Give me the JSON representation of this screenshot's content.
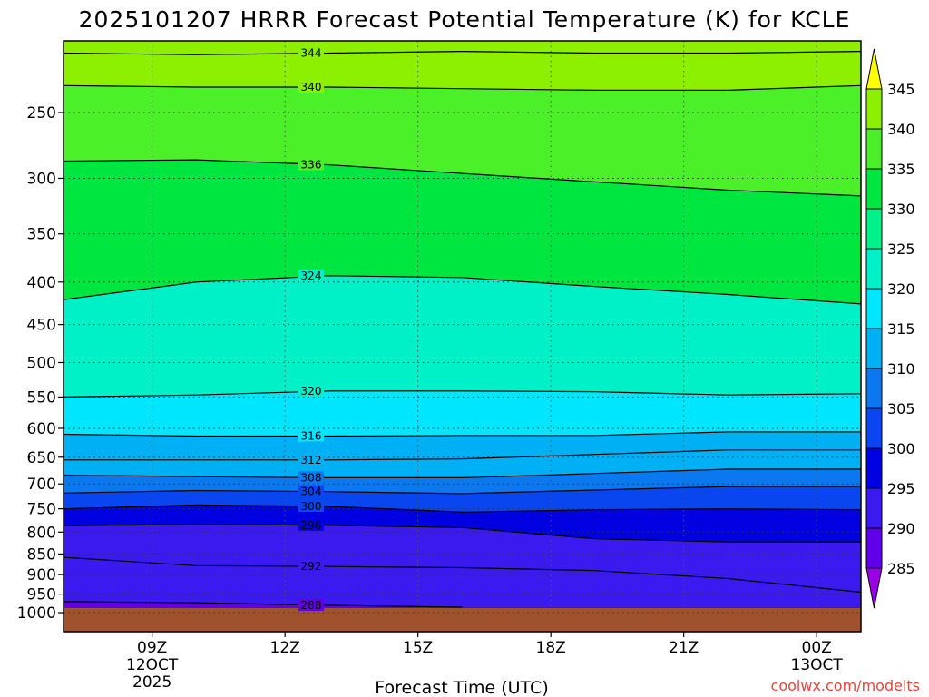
{
  "chart_data": {
    "type": "heatmap",
    "title": "2025101207 HRRR Forecast Potential Temperature (K) for KCLE",
    "xlabel": "Forecast Time (UTC)",
    "ylabel": "",
    "credit": "coolwx.com/modelts",
    "x_ticks": [
      {
        "hour": 9,
        "label": "09Z",
        "sub1": "12OCT",
        "sub2": "2025"
      },
      {
        "hour": 12,
        "label": "12Z",
        "sub1": "",
        "sub2": ""
      },
      {
        "hour": 15,
        "label": "15Z",
        "sub1": "",
        "sub2": ""
      },
      {
        "hour": 18,
        "label": "18Z",
        "sub1": "",
        "sub2": ""
      },
      {
        "hour": 21,
        "label": "21Z",
        "sub1": "",
        "sub2": ""
      },
      {
        "hour": 24,
        "label": "00Z",
        "sub1": "13OCT",
        "sub2": ""
      }
    ],
    "xlim": [
      7.0,
      25.0
    ],
    "y_ticks": [
      250,
      300,
      350,
      400,
      450,
      500,
      550,
      600,
      650,
      700,
      750,
      800,
      850,
      900,
      950,
      1000
    ],
    "ylim": [
      200,
      1025
    ],
    "y_scale": "log-pressure",
    "ground_pressure": 1000,
    "colorbar": {
      "levels": [
        285,
        290,
        295,
        300,
        305,
        310,
        315,
        320,
        325,
        330,
        335,
        340,
        345
      ],
      "tick_labels": [
        "285",
        "290",
        "295",
        "300",
        "305",
        "310",
        "315",
        "320",
        "325",
        "330",
        "335",
        "340",
        "345"
      ],
      "colors": [
        "#9a00e6",
        "#6000e8",
        "#3a1aee",
        "#0000e0",
        "#0a46f0",
        "#0a78f0",
        "#00b0f5",
        "#00e6ff",
        "#00f0c8",
        "#00f08a",
        "#00e640",
        "#4cf028",
        "#8cf000",
        "#c8f000",
        "#ffff00"
      ],
      "extend": "both"
    },
    "grid": true,
    "isentropes": [
      {
        "theta": 344,
        "p": [
          212,
          213,
          212,
          211,
          212,
          212,
          211
        ],
        "labelled": true
      },
      {
        "theta": 340,
        "p": [
          232,
          233,
          233,
          234,
          235,
          235,
          232
        ],
        "labelled": true
      },
      {
        "theta": 336,
        "p": [
          286,
          285,
          289,
          296,
          303,
          310,
          315
        ],
        "labelled": true
      },
      {
        "theta": 324,
        "p": [
          420,
          400,
          393,
          395,
          405,
          414,
          425
        ],
        "labelled": true
      },
      {
        "theta": 320,
        "p": [
          550,
          547,
          541,
          541,
          542,
          547,
          545
        ],
        "labelled": true
      },
      {
        "theta": 316,
        "p": [
          610,
          613,
          613,
          612,
          612,
          606,
          606
        ],
        "labelled": true
      },
      {
        "theta": 312,
        "p": [
          655,
          655,
          655,
          653,
          645,
          637,
          637
        ],
        "labelled": true
      },
      {
        "theta": 308,
        "p": [
          683,
          686,
          688,
          688,
          680,
          672,
          672
        ],
        "labelled": true
      },
      {
        "theta": 304,
        "p": [
          718,
          713,
          715,
          719,
          712,
          705,
          705
        ],
        "labelled": true
      },
      {
        "theta": 300,
        "p": [
          750,
          742,
          745,
          757,
          752,
          750,
          752
        ],
        "labelled": true
      },
      {
        "theta": 296,
        "p": [
          786,
          783,
          785,
          790,
          815,
          822,
          822
        ],
        "labelled": true
      },
      {
        "theta": 292,
        "p": [
          858,
          878,
          880,
          883,
          890,
          910,
          945
        ],
        "labelled": true
      },
      {
        "theta": 288,
        "p": [
          970,
          973,
          980,
          985
        ],
        "labelled": true
      }
    ]
  }
}
